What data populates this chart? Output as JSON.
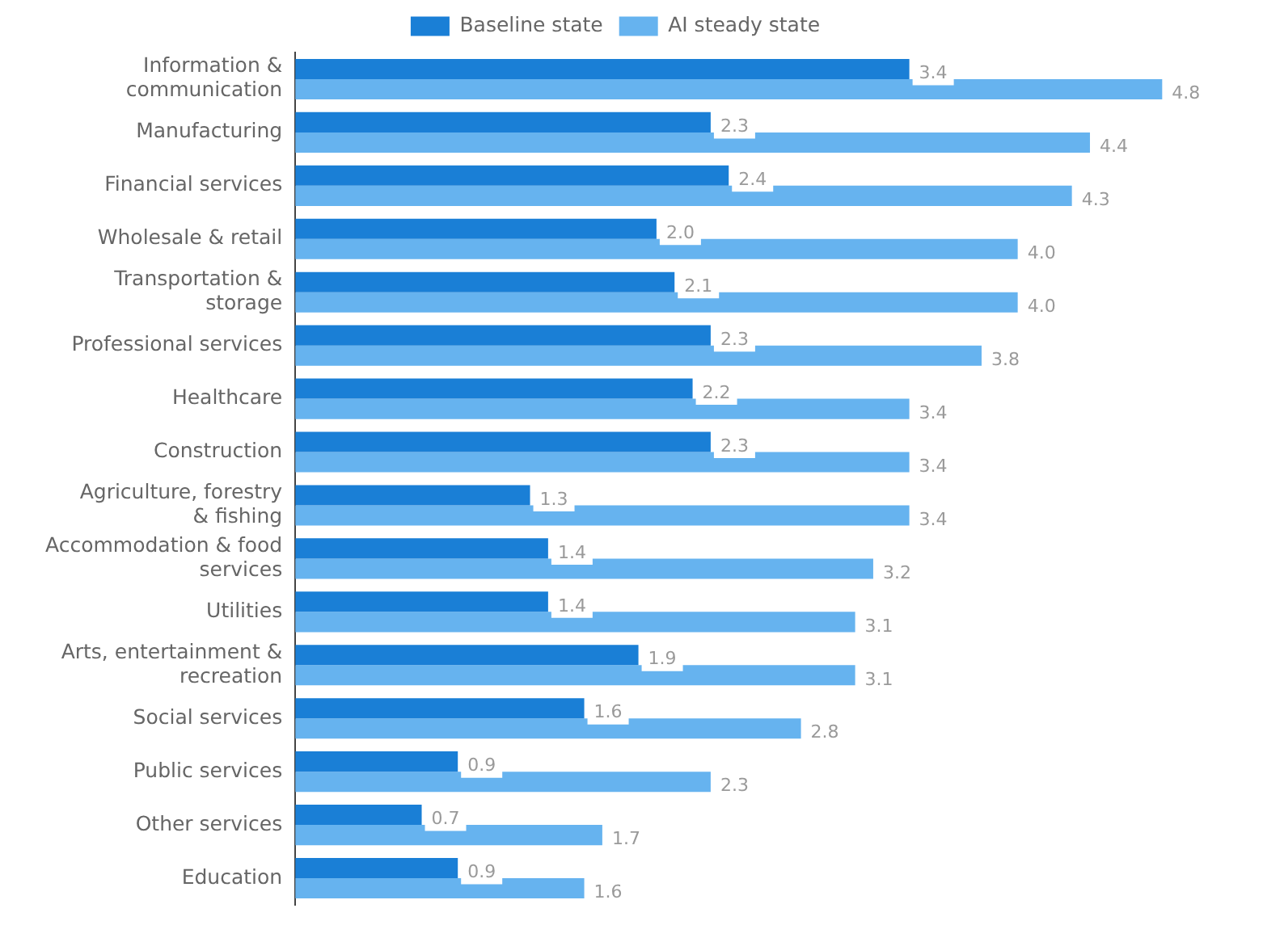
{
  "chart_data": {
    "type": "bar",
    "orientation": "horizontal",
    "categories": [
      "Information & communication",
      "Manufacturing",
      "Financial services",
      "Wholesale & retail",
      "Transportation & storage",
      "Professional services",
      "Healthcare",
      "Construction",
      "Agriculture, forestry & fishing",
      "Accommodation & food services",
      "Utilities",
      "Arts, entertainment & recreation",
      "Social services",
      "Public services",
      "Other services",
      "Education"
    ],
    "tick_labels": "y",
    "legend": "top",
    "series": [
      {
        "name": "Baseline state",
        "color": "#1a7fd6",
        "values": [
          3.4,
          2.3,
          2.4,
          2.0,
          2.1,
          2.3,
          2.2,
          2.3,
          1.3,
          1.4,
          1.4,
          1.9,
          1.6,
          0.9,
          0.7,
          0.9
        ],
        "value_labels": [
          "3.4",
          "2.3",
          "2.4",
          "2.0",
          "2.1",
          "2.3",
          "2.2",
          "2.3",
          "1.3",
          "1.4",
          "1.4",
          "1.9",
          "1.6",
          "0.9",
          "0.7",
          "0.9"
        ]
      },
      {
        "name": "AI steady state",
        "color": "#66b3ef",
        "values": [
          4.8,
          4.4,
          4.3,
          4.0,
          4.0,
          3.8,
          3.4,
          3.4,
          3.4,
          3.2,
          3.1,
          3.1,
          2.8,
          2.3,
          1.7,
          1.6
        ],
        "value_labels": [
          "4.8",
          "4.4",
          "4.3",
          "4.0",
          "4.0",
          "3.8",
          "3.4",
          "3.4",
          "3.4",
          "3.2",
          "3.1",
          "3.1",
          "2.8",
          "2.3",
          "1.7",
          "1.6"
        ]
      }
    ]
  }
}
